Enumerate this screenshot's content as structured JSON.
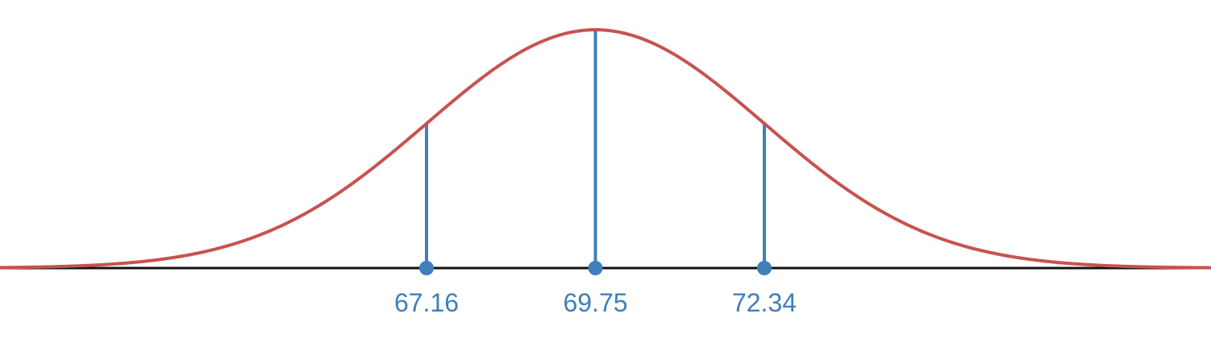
{
  "chart_data": {
    "type": "line",
    "distribution": "normal",
    "mean": 69.75,
    "std_dev": 2.59,
    "x_range": [
      59.5,
      80.1
    ],
    "marked_points": [
      {
        "x": 67.16,
        "label": "67.16"
      },
      {
        "x": 69.75,
        "label": "69.75"
      },
      {
        "x": 72.34,
        "label": "72.34"
      }
    ],
    "grid": false,
    "colors": {
      "curve": "#c8524f",
      "markers": "#3f7fba",
      "axis": "#111111"
    }
  }
}
